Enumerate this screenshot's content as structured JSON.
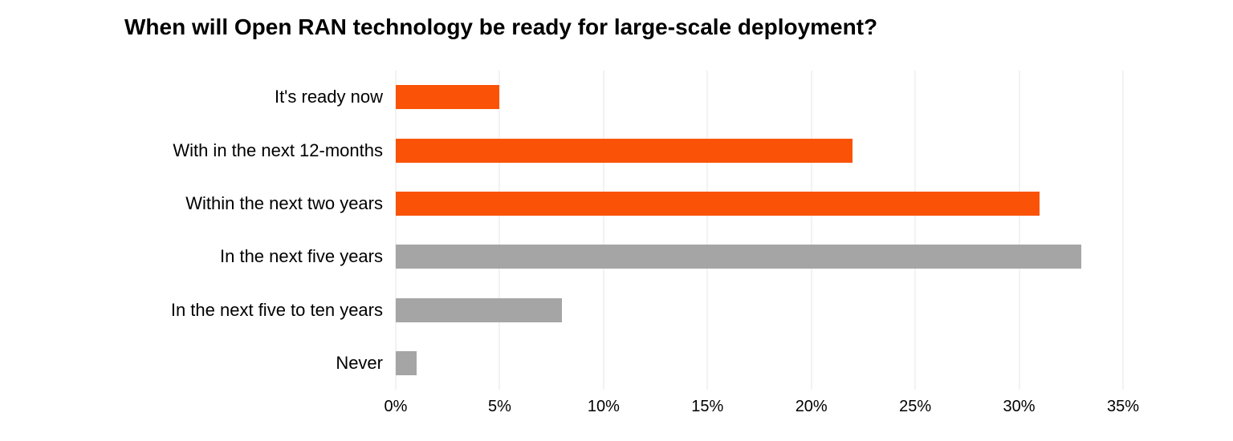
{
  "title": "When will Open RAN technology be ready for large-scale deployment?",
  "colors": {
    "accent_orange": "#FA5307",
    "neutral_gray": "#A5A5A5",
    "gridline": "#E4E4E4",
    "text": "#000000",
    "background": "#FFFFFF"
  },
  "chart_data": {
    "type": "bar",
    "orientation": "horizontal",
    "title": "When will Open RAN technology be ready for large-scale deployment?",
    "categories": [
      "It's ready now",
      "With in the next 12-months",
      "Within the next two years",
      "In the next five years",
      "In the next five to ten years",
      "Never"
    ],
    "values": [
      5,
      22,
      31,
      33,
      8,
      1
    ],
    "bar_colors": [
      "#FA5307",
      "#FA5307",
      "#FA5307",
      "#A5A5A5",
      "#A5A5A5",
      "#A5A5A5"
    ],
    "unit": "%",
    "xlabel": "",
    "ylabel": "",
    "xlim": [
      0,
      35
    ],
    "x_tick_values": [
      0,
      5,
      10,
      15,
      20,
      25,
      30,
      35
    ],
    "x_tick_labels": [
      "0%",
      "5%",
      "10%",
      "15%",
      "20%",
      "25%",
      "30%",
      "35%"
    ],
    "grid": "vertical-only",
    "legend_position": "none"
  }
}
